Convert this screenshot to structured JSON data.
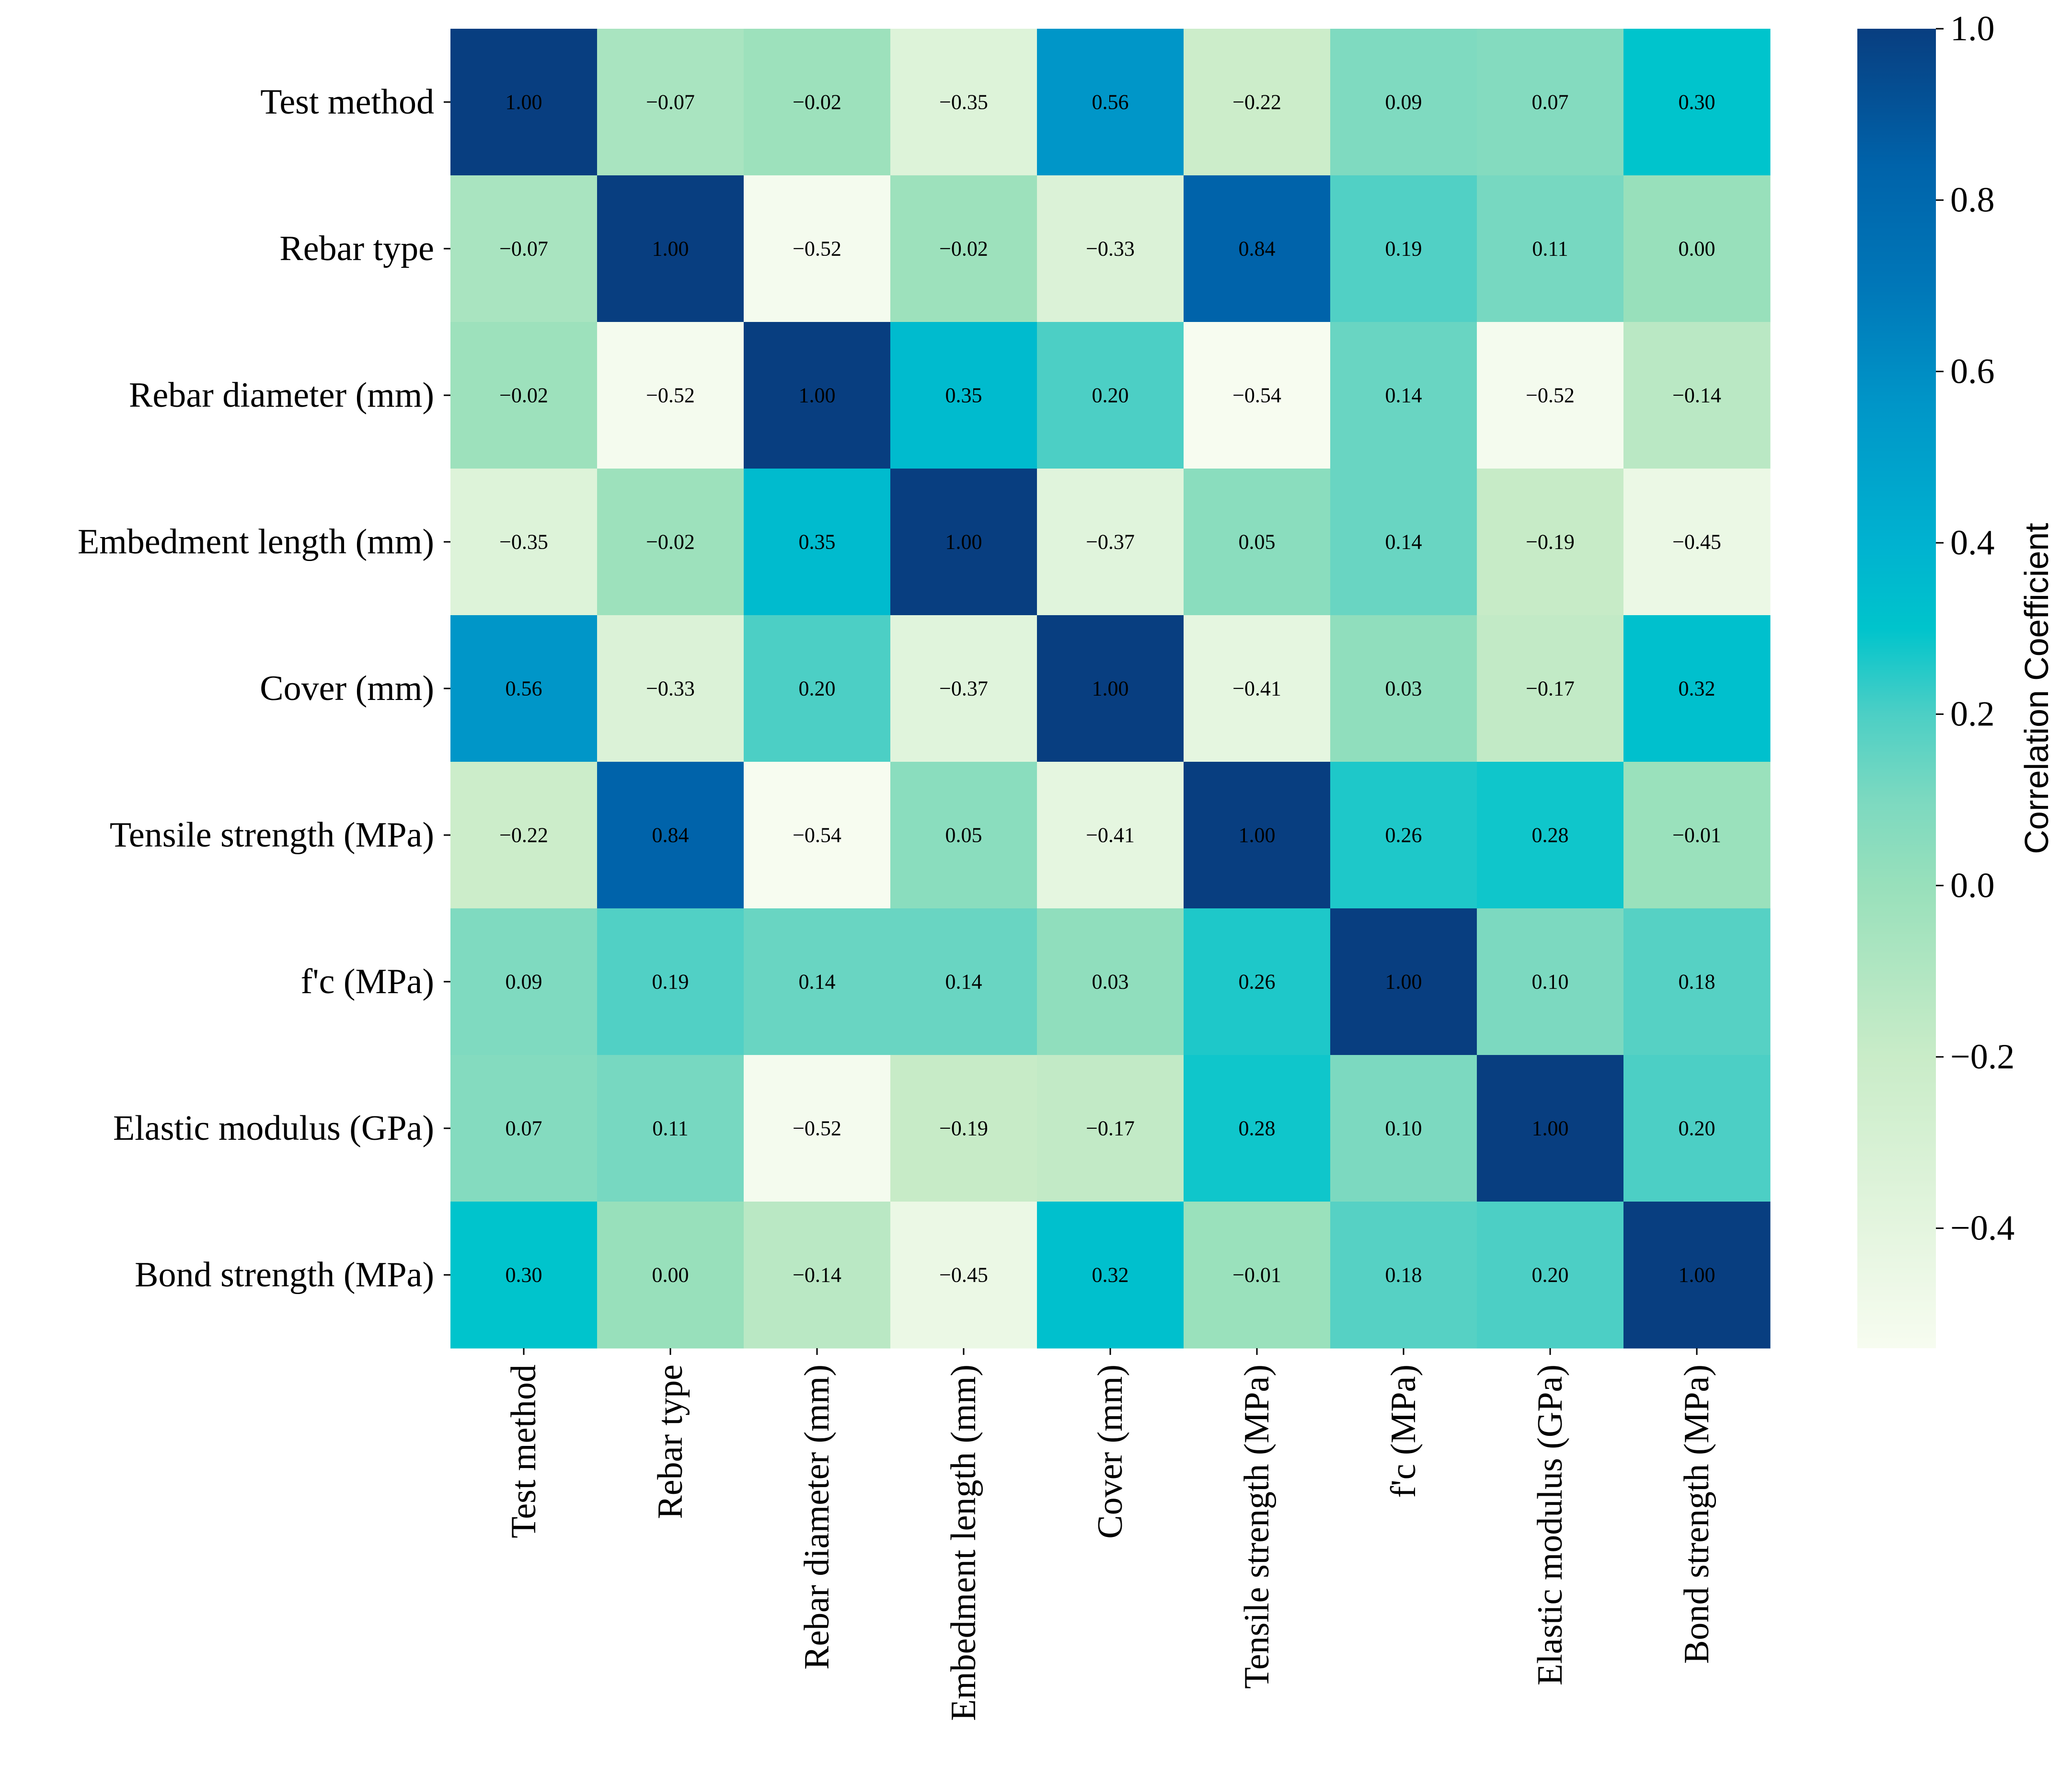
{
  "chart_data": {
    "type": "heatmap",
    "title": "",
    "xlabel": "",
    "ylabel": "",
    "rows": [
      "Test method",
      "Rebar type",
      "Rebar diameter (mm)",
      "Embedment length (mm)",
      "Cover (mm)",
      "Tensile strength (MPa)",
      "f'c (MPa)",
      "Elastic modulus (GPa)",
      "Bond strength (MPa)"
    ],
    "columns": [
      "Test method",
      "Rebar type",
      "Rebar diameter (mm)",
      "Embedment length (mm)",
      "Cover (mm)",
      "Tensile strength (MPa)",
      "f'c (MPa)",
      "Elastic modulus (GPa)",
      "Bond strength (MPa)"
    ],
    "values": [
      [
        1.0,
        -0.07,
        -0.02,
        -0.35,
        0.56,
        -0.22,
        0.09,
        0.07,
        0.3
      ],
      [
        -0.07,
        1.0,
        -0.52,
        -0.02,
        -0.33,
        0.84,
        0.19,
        0.11,
        0.0
      ],
      [
        -0.02,
        -0.52,
        1.0,
        0.35,
        0.2,
        -0.54,
        0.14,
        -0.52,
        -0.14
      ],
      [
        -0.35,
        -0.02,
        0.35,
        1.0,
        -0.37,
        0.05,
        0.14,
        -0.19,
        -0.45
      ],
      [
        0.56,
        -0.33,
        0.2,
        -0.37,
        1.0,
        -0.41,
        0.03,
        -0.17,
        0.32
      ],
      [
        -0.22,
        0.84,
        -0.54,
        0.05,
        -0.41,
        1.0,
        0.26,
        0.28,
        -0.01
      ],
      [
        0.09,
        0.19,
        0.14,
        0.14,
        0.03,
        0.26,
        1.0,
        0.1,
        0.18
      ],
      [
        0.07,
        0.11,
        -0.52,
        -0.19,
        -0.17,
        0.28,
        0.1,
        1.0,
        0.2
      ],
      [
        0.3,
        0.0,
        -0.14,
        -0.45,
        0.32,
        -0.01,
        0.18,
        0.2,
        1.0
      ]
    ],
    "value_format": "2 decimals, unicode minus",
    "colorbar": {
      "label": "Correlation Coefficient",
      "range": [
        -0.54,
        1.0
      ],
      "ticks": [
        -0.4,
        -0.2,
        0.0,
        0.2,
        0.4,
        0.6,
        0.8,
        1.0
      ],
      "tick_labels": [
        "−0.4",
        "−0.2",
        "0.0",
        "0.2",
        "0.4",
        "0.6",
        "0.8",
        "1.0"
      ],
      "colormap": "GnBu-like",
      "stops": [
        {
          "v": -0.54,
          "color": "#f7fcf0"
        },
        {
          "v": -0.4,
          "color": "#e4f5df"
        },
        {
          "v": -0.2,
          "color": "#c9ecc8"
        },
        {
          "v": 0.0,
          "color": "#98e0bb"
        },
        {
          "v": 0.1,
          "color": "#7cd9c0"
        },
        {
          "v": 0.2,
          "color": "#4ccfc5"
        },
        {
          "v": 0.3,
          "color": "#00c4cc"
        },
        {
          "v": 0.4,
          "color": "#00b2d0"
        },
        {
          "v": 0.56,
          "color": "#0096c8"
        },
        {
          "v": 0.7,
          "color": "#0077b8"
        },
        {
          "v": 0.84,
          "color": "#0063aa"
        },
        {
          "v": 1.0,
          "color": "#083e80"
        }
      ]
    },
    "grid": false,
    "legend": "colorbar-right"
  }
}
